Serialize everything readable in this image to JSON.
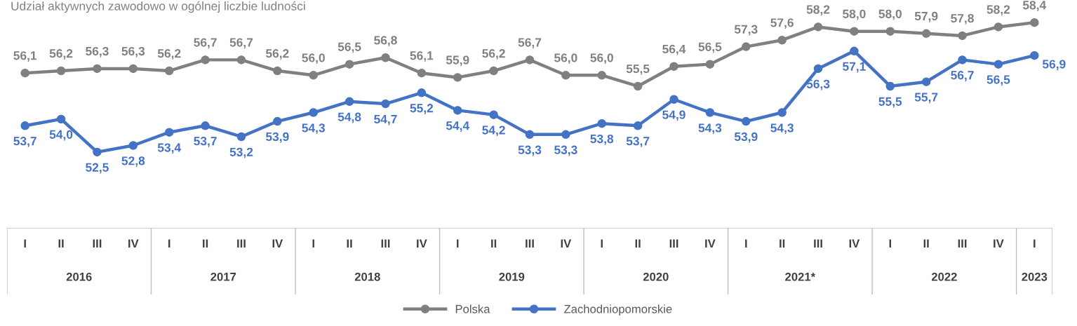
{
  "chart_data": {
    "type": "line",
    "title": "Udział aktywnych zawodowo w ogólnej liczbie ludności",
    "categories": [
      "I",
      "II",
      "III",
      "IV",
      "I",
      "II",
      "III",
      "IV",
      "I",
      "II",
      "III",
      "IV",
      "I",
      "II",
      "III",
      "IV",
      "I",
      "II",
      "III",
      "IV",
      "I",
      "II",
      "III",
      "IV",
      "I",
      "II",
      "III",
      "IV",
      "I"
    ],
    "annotations": [
      "2016",
      "2017",
      "2018",
      "2019",
      "2020",
      "2021*",
      "2022",
      "2023"
    ],
    "series": [
      {
        "name": "Polska",
        "color": "#808080",
        "values": [
          56.1,
          56.2,
          56.3,
          56.3,
          56.2,
          56.7,
          56.7,
          56.2,
          56.0,
          56.5,
          56.8,
          56.1,
          55.9,
          56.2,
          56.7,
          56.0,
          56.0,
          55.5,
          56.4,
          56.5,
          57.3,
          57.6,
          58.2,
          58.0,
          58.0,
          57.9,
          57.8,
          58.2,
          58.4
        ],
        "value_labels": [
          "56,1",
          "56,2",
          "56,3",
          "56,3",
          "56,2",
          "56,7",
          "56,7",
          "56,2",
          "56,0",
          "56,5",
          "56,8",
          "56,1",
          "55,9",
          "56,2",
          "56,7",
          "56,0",
          "56,0",
          "55,5",
          "56,4",
          "56,5",
          "57,3",
          "57,6",
          "58,2",
          "58,0",
          "58,0",
          "57,9",
          "57,8",
          "58,2",
          "58,4"
        ]
      },
      {
        "name": "Zachodniopomorskie",
        "color": "#4472c4",
        "values": [
          53.7,
          54.0,
          52.5,
          52.8,
          53.4,
          53.7,
          53.2,
          53.9,
          54.3,
          54.8,
          54.7,
          55.2,
          54.4,
          54.2,
          53.3,
          53.3,
          53.8,
          53.7,
          54.9,
          54.3,
          53.9,
          54.3,
          56.3,
          57.1,
          55.5,
          55.7,
          56.7,
          56.5,
          56.9
        ],
        "value_labels": [
          "53,7",
          "54,0",
          "52,5",
          "52,8",
          "53,4",
          "53,7",
          "53,2",
          "53,9",
          "54,3",
          "54,8",
          "54,7",
          "55,2",
          "54,4",
          "54,2",
          "53,3",
          "53,3",
          "53,8",
          "53,7",
          "54,9",
          "54,3",
          "53,9",
          "54,3",
          "56,3",
          "57,1",
          "55,5",
          "55,7",
          "56,7",
          "56,5",
          "56,9"
        ]
      }
    ],
    "marker": "circle",
    "line_style": "solid",
    "legend": "bottom"
  }
}
